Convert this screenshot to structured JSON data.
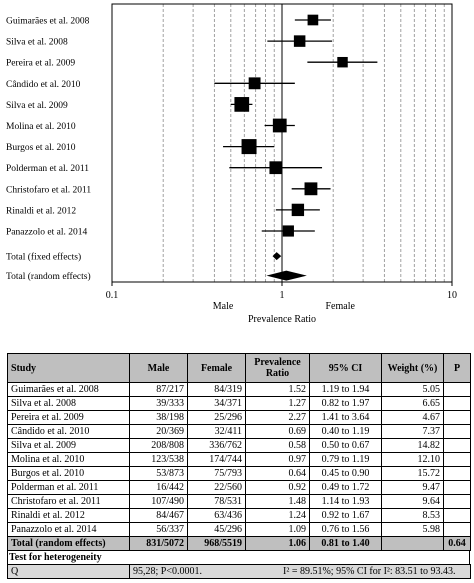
{
  "chart_data": {
    "type": "forest",
    "scale": "log",
    "xlim": [
      0.1,
      10
    ],
    "xticks": [
      "0.1",
      "1",
      "10"
    ],
    "xlabel": "Prevalence Ratio",
    "left_label": "Male",
    "right_label": "Female",
    "rows": [
      {
        "label": "Guimarães et al. 2008",
        "pr": 1.52,
        "lo": 1.19,
        "hi": 1.94,
        "weight": 5.05
      },
      {
        "label": "Silva et al. 2008",
        "pr": 1.27,
        "lo": 0.82,
        "hi": 1.97,
        "weight": 6.65
      },
      {
        "label": "Pereira et al. 2009",
        "pr": 2.27,
        "lo": 1.41,
        "hi": 3.64,
        "weight": 4.67
      },
      {
        "label": "Cândido et al. 2010",
        "pr": 0.69,
        "lo": 0.4,
        "hi": 1.19,
        "weight": 7.37
      },
      {
        "label": "Silva et al. 2009",
        "pr": 0.58,
        "lo": 0.5,
        "hi": 0.67,
        "weight": 14.82
      },
      {
        "label": "Molina et al. 2010",
        "pr": 0.97,
        "lo": 0.79,
        "hi": 1.19,
        "weight": 12.1
      },
      {
        "label": "Burgos et al. 2010",
        "pr": 0.64,
        "lo": 0.45,
        "hi": 0.9,
        "weight": 15.72
      },
      {
        "label": "Polderman et al. 2011",
        "pr": 0.92,
        "lo": 0.49,
        "hi": 1.72,
        "weight": 9.47
      },
      {
        "label": "Christofaro et al. 2011",
        "pr": 1.48,
        "lo": 1.14,
        "hi": 1.93,
        "weight": 9.64
      },
      {
        "label": "Rinaldi et al. 2012",
        "pr": 1.24,
        "lo": 0.92,
        "hi": 1.67,
        "weight": 8.53
      },
      {
        "label": "Panazzolo et al. 2014",
        "pr": 1.09,
        "lo": 0.76,
        "hi": 1.56,
        "weight": 5.98
      }
    ],
    "summaries": [
      {
        "label": "Total (fixed effects)",
        "pr": 0.93,
        "lo": 0.88,
        "hi": 0.99
      },
      {
        "label": "Total (random effects)",
        "pr": 1.06,
        "lo": 0.81,
        "hi": 1.4
      }
    ]
  },
  "table": {
    "headers": [
      "Study",
      "Male",
      "Female",
      "Prevalence Ratio",
      "95% CI",
      "Weight (%)",
      "P"
    ],
    "rows": [
      [
        "Guimarães et al. 2008",
        "87/217",
        "84/319",
        "1.52",
        "1.19 to 1.94",
        "5.05",
        ""
      ],
      [
        "Silva et al. 2008",
        "39/333",
        "34/371",
        "1.27",
        "0.82 to 1.97",
        "6.65",
        ""
      ],
      [
        "Pereira et al. 2009",
        "38/198",
        "25/296",
        "2.27",
        "1.41 to 3.64",
        "4.67",
        ""
      ],
      [
        "Cândido et al. 2010",
        "20/369",
        "32/411",
        "0.69",
        "0.40 to 1.19",
        "7.37",
        ""
      ],
      [
        "Silva et al. 2009",
        "208/808",
        "336/762",
        "0.58",
        "0.50 to 0.67",
        "14.82",
        ""
      ],
      [
        "Molina et al. 2010",
        "123/538",
        "174/744",
        "0.97",
        "0.79 to 1.19",
        "12.10",
        ""
      ],
      [
        "Burgos et al. 2010",
        "53/873",
        "75/793",
        "0.64",
        "0.45 to 0.90",
        "15.72",
        ""
      ],
      [
        "Polderman et al. 2011",
        "16/442",
        "22/560",
        "0.92",
        "0.49 to 1.72",
        "9.47",
        ""
      ],
      [
        "Christofaro et al. 2011",
        "107/490",
        "78/531",
        "1.48",
        "1.14 to 1.93",
        "9.64",
        ""
      ],
      [
        "Rinaldi et al. 2012",
        "84/467",
        "63/436",
        "1.24",
        "0.92 to 1.67",
        "8.53",
        ""
      ],
      [
        "Panazzolo et al. 2014",
        "56/337",
        "45/296",
        "1.09",
        "0.76 to 1.56",
        "5.98",
        ""
      ]
    ],
    "total": [
      "Total (random effects)",
      "831/5072",
      "968/5519",
      "1.06",
      "0.81 to 1.40",
      "",
      "0.64"
    ],
    "heterogeneity_title": "Test for heterogeneity",
    "heterogeneity": {
      "q_label": "Q",
      "q_value": "95,28; P<0.0001.",
      "i2": "I² = 89.51%; 95% CI for I²: 83.51 to 93.43."
    }
  }
}
